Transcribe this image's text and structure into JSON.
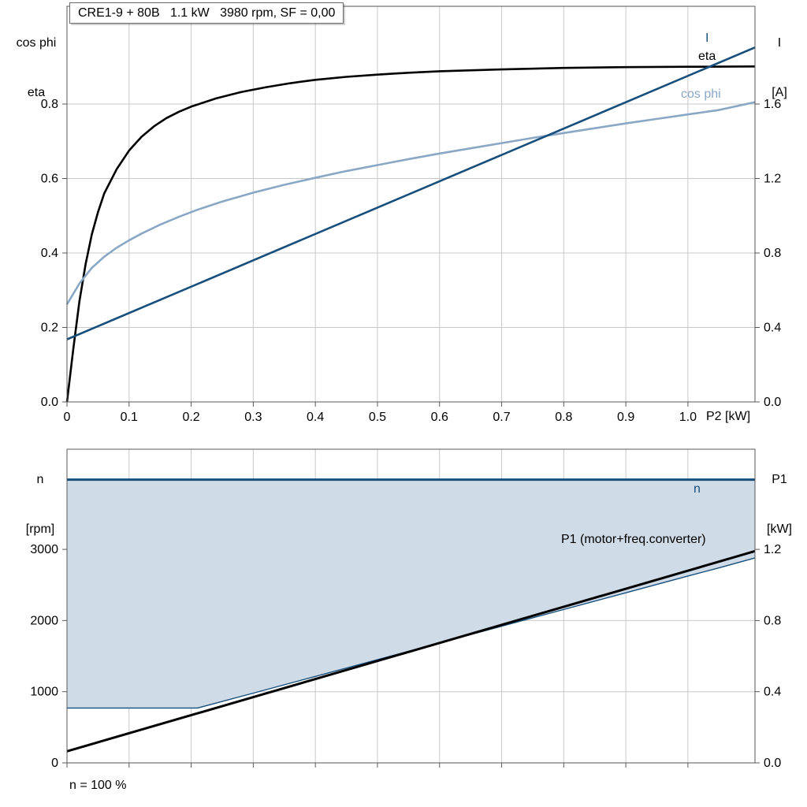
{
  "title_box": {
    "text": "CRE1-9 + 80B   1.1 kW   3980 rpm, SF = 0,00"
  },
  "colors": {
    "dark_blue": "#174f7c",
    "light_blue": "#8aa8c6",
    "black": "#000000",
    "grid": "#c8c8c8",
    "axis": "#595959",
    "fill": "#cfdbe7",
    "background": "#ffffff"
  },
  "labels": {
    "top_left_line1": "cos phi",
    "top_left_line2": "eta",
    "top_right_line1": "I",
    "top_right_line2": "[A]",
    "bottom_left_line1": "n",
    "bottom_left_line2": "[rpm]",
    "bottom_right_line1": "P1",
    "bottom_right_line2": "[kW]",
    "x_axis_label": "P2 [kW]",
    "footnote": "n = 100 %",
    "curve_I": "I",
    "curve_eta": "eta",
    "curve_cos_phi": "cos phi",
    "curve_n": "n",
    "curve_P1": "P1 (motor+freq.converter)"
  },
  "chart_data": [
    {
      "type": "line",
      "title": "CRE1-9 + 80B   1.1 kW   3980 rpm, SF = 0,00",
      "x": {
        "label": "P2 [kW]",
        "range": [
          0,
          1.108
        ],
        "ticks": [
          0,
          0.1,
          0.2,
          0.3,
          0.4,
          0.5,
          0.6,
          0.7,
          0.8,
          0.9,
          1.0
        ],
        "tick_labels": [
          "0",
          "0.1",
          "0.2",
          "0.3",
          "0.4",
          "0.5",
          "0.6",
          "0.7",
          "0.8",
          "0.9",
          "1.0"
        ]
      },
      "y_left": {
        "label": "cos phi / eta",
        "range": [
          0,
          1.0624
        ],
        "ticks": [
          0,
          0.2,
          0.4,
          0.6,
          0.8
        ],
        "tick_labels": [
          "0.0",
          "0.2",
          "0.4",
          "0.6",
          "0.8"
        ]
      },
      "y_right": {
        "label": "I [A]",
        "range": [
          0,
          2.1248
        ],
        "ticks": [
          0,
          0.4,
          0.8,
          1.2,
          1.6
        ],
        "tick_labels": [
          "0.0",
          "0.4",
          "0.8",
          "1.2",
          "1.6"
        ]
      },
      "grid": true,
      "legend": "inline-labels",
      "series": [
        {
          "name": "eta",
          "color": "black",
          "width": 2.6,
          "axis": "left",
          "points": [
            [
              0,
              0
            ],
            [
              0.005,
              0.07
            ],
            [
              0.01,
              0.14
            ],
            [
              0.02,
              0.27
            ],
            [
              0.03,
              0.37
            ],
            [
              0.04,
              0.45
            ],
            [
              0.05,
              0.51
            ],
            [
              0.06,
              0.56
            ],
            [
              0.08,
              0.625
            ],
            [
              0.1,
              0.675
            ],
            [
              0.12,
              0.712
            ],
            [
              0.14,
              0.74
            ],
            [
              0.16,
              0.762
            ],
            [
              0.18,
              0.779
            ],
            [
              0.2,
              0.793
            ],
            [
              0.24,
              0.815
            ],
            [
              0.28,
              0.832
            ],
            [
              0.32,
              0.845
            ],
            [
              0.36,
              0.856
            ],
            [
              0.4,
              0.865
            ],
            [
              0.45,
              0.873
            ],
            [
              0.5,
              0.879
            ],
            [
              0.55,
              0.884
            ],
            [
              0.6,
              0.888
            ],
            [
              0.7,
              0.893
            ],
            [
              0.8,
              0.897
            ],
            [
              0.9,
              0.899
            ],
            [
              1,
              0.9
            ],
            [
              1.108,
              0.901
            ]
          ]
        },
        {
          "name": "cos phi",
          "color": "light_blue",
          "width": 2.6,
          "axis": "left",
          "points": [
            [
              0,
              0.262
            ],
            [
              0.02,
              0.318
            ],
            [
              0.04,
              0.36
            ],
            [
              0.06,
              0.39
            ],
            [
              0.08,
              0.414
            ],
            [
              0.1,
              0.434
            ],
            [
              0.12,
              0.452
            ],
            [
              0.15,
              0.476
            ],
            [
              0.18,
              0.497
            ],
            [
              0.21,
              0.516
            ],
            [
              0.25,
              0.538
            ],
            [
              0.3,
              0.562
            ],
            [
              0.35,
              0.583
            ],
            [
              0.4,
              0.602
            ],
            [
              0.45,
              0.62
            ],
            [
              0.5,
              0.636
            ],
            [
              0.55,
              0.652
            ],
            [
              0.6,
              0.667
            ],
            [
              0.65,
              0.681
            ],
            [
              0.7,
              0.695
            ],
            [
              0.75,
              0.709
            ],
            [
              0.8,
              0.722
            ],
            [
              0.85,
              0.735
            ],
            [
              0.9,
              0.748
            ],
            [
              0.95,
              0.76
            ],
            [
              1,
              0.772
            ],
            [
              1.05,
              0.784
            ],
            [
              1.108,
              0.805
            ]
          ]
        },
        {
          "name": "I",
          "color": "dark_blue",
          "width": 2.6,
          "axis": "left",
          "points": [
            [
              0,
              0.168
            ],
            [
              1.108,
              0.952
            ]
          ]
        }
      ]
    },
    {
      "type": "line",
      "title": "",
      "x": {
        "label": "",
        "range": [
          0,
          1.108
        ],
        "ticks": [
          0,
          0.1,
          0.2,
          0.3,
          0.4,
          0.5,
          0.6,
          0.7,
          0.8,
          0.9,
          1.0
        ],
        "tick_labels": []
      },
      "y_left": {
        "label": "n [rpm]",
        "range": [
          0,
          4407
        ],
        "ticks": [
          0,
          1000,
          2000,
          3000
        ],
        "tick_labels": [
          "0",
          "1000",
          "2000",
          "3000"
        ]
      },
      "y_right": {
        "label": "P1 [kW]",
        "range": [
          0,
          1.763
        ],
        "ticks": [
          0,
          0.4,
          0.8,
          1.2
        ],
        "tick_labels": [
          "0.0",
          "0.4",
          "0.8",
          "1.2"
        ]
      },
      "grid": true,
      "footnote": "n = 100 %",
      "area": {
        "name": "speed-range",
        "upper": [
          [
            0,
            3980
          ],
          [
            1.108,
            3980
          ]
        ],
        "lower": [
          [
            0,
            770
          ],
          [
            0.21,
            770
          ],
          [
            0.3,
            980
          ],
          [
            0.4,
            1215
          ],
          [
            0.5,
            1450
          ],
          [
            0.6,
            1685
          ],
          [
            0.7,
            1920
          ],
          [
            0.8,
            2155
          ],
          [
            0.9,
            2390
          ],
          [
            1,
            2625
          ],
          [
            1.05,
            2740
          ],
          [
            1.108,
            2880
          ]
        ]
      },
      "series": [
        {
          "name": "n",
          "color": "dark_blue",
          "width": 3,
          "axis": "left",
          "points": [
            [
              0,
              3980
            ],
            [
              1.108,
              3980
            ]
          ]
        },
        {
          "name": "n-lower-limit",
          "color": "dark_blue",
          "width": 1.4,
          "axis": "left",
          "points": [
            [
              0,
              770
            ],
            [
              0.21,
              770
            ],
            [
              0.3,
              980
            ],
            [
              0.4,
              1215
            ],
            [
              0.5,
              1450
            ],
            [
              0.6,
              1685
            ],
            [
              0.7,
              1920
            ],
            [
              0.8,
              2155
            ],
            [
              0.9,
              2390
            ],
            [
              1,
              2625
            ],
            [
              1.05,
              2740
            ],
            [
              1.108,
              2880
            ]
          ]
        },
        {
          "name": "P1 (motor+freq.converter)",
          "color": "black",
          "width": 3,
          "axis": "right",
          "points": [
            [
              0,
              0.065
            ],
            [
              1.108,
              1.19
            ]
          ]
        }
      ]
    }
  ]
}
